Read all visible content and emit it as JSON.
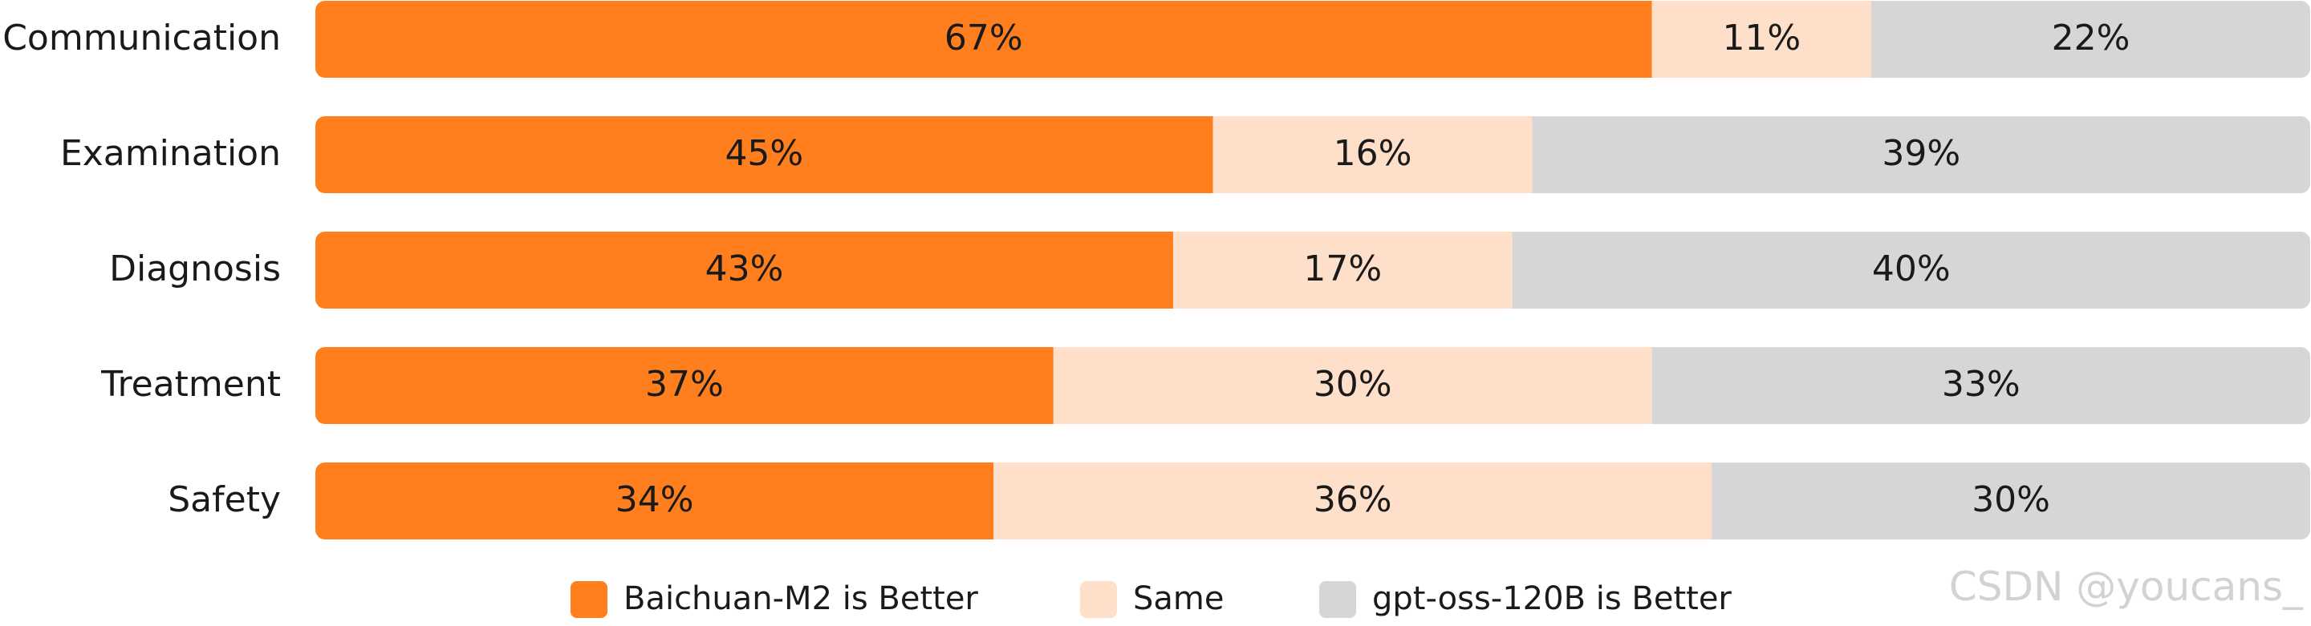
{
  "chart_data": {
    "type": "bar",
    "orientation": "horizontal",
    "stacked": true,
    "normalized": true,
    "unit": "%",
    "categories": [
      "Communication",
      "Examination",
      "Diagnosis",
      "Treatment",
      "Safety"
    ],
    "series": [
      {
        "name": "Baichuan-M2 is Better",
        "color": "#FF7F1E",
        "values": [
          67,
          45,
          43,
          37,
          34
        ]
      },
      {
        "name": "Same",
        "color": "#FEE0CA",
        "values": [
          11,
          16,
          17,
          30,
          36
        ]
      },
      {
        "name": "gpt-oss-120B is Better",
        "color": "#D6D6D6",
        "values": [
          22,
          39,
          40,
          33,
          30
        ]
      }
    ],
    "xlim": [
      0,
      100
    ],
    "grid": false,
    "legend_position": "bottom"
  },
  "watermark": "CSDN @youcans_"
}
